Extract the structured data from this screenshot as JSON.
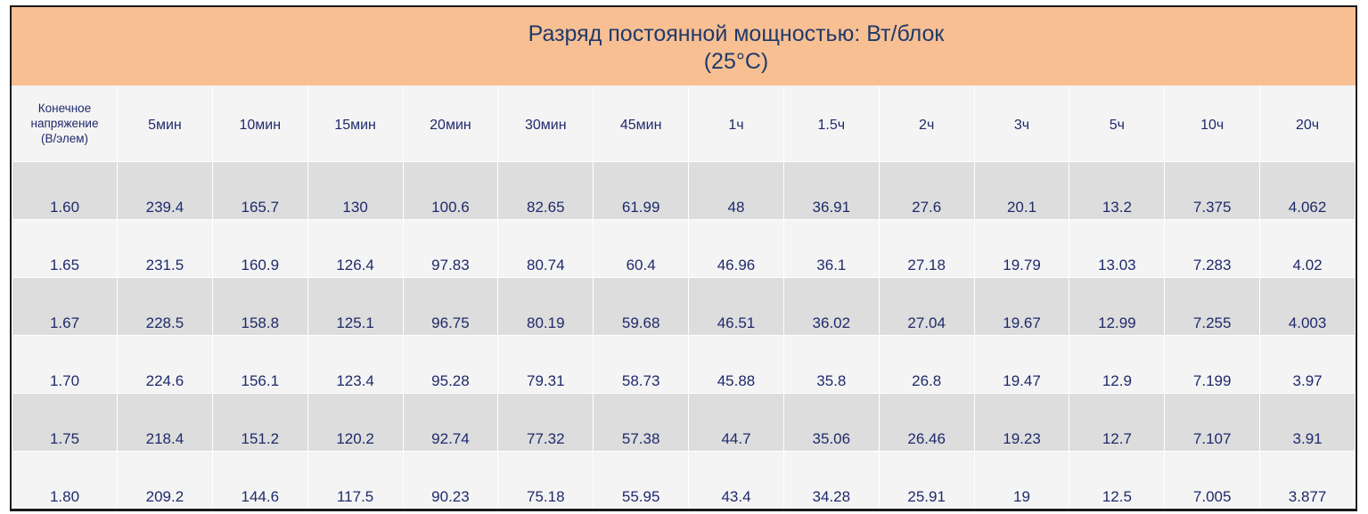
{
  "table": {
    "title_line1": "Разряд постоянной мощностью: Вт/блок",
    "title_line2": "(25°C)",
    "voltage_header_lines": [
      "Конечное",
      "напряжение",
      "(В/элем)"
    ],
    "columns": [
      "5мин",
      "10мин",
      "15мин",
      "20мин",
      "30мин",
      "45мин",
      "1ч",
      "1.5ч",
      "2ч",
      "3ч",
      "5ч",
      "10ч",
      "20ч"
    ],
    "rows": [
      {
        "voltage": "1.60",
        "values": [
          "239.4",
          "165.7",
          "130",
          "100.6",
          "82.65",
          "61.99",
          "48",
          "36.91",
          "27.6",
          "20.1",
          "13.2",
          "7.375",
          "4.062"
        ]
      },
      {
        "voltage": "1.65",
        "values": [
          "231.5",
          "160.9",
          "126.4",
          "97.83",
          "80.74",
          "60.4",
          "46.96",
          "36.1",
          "27.18",
          "19.79",
          "13.03",
          "7.283",
          "4.02"
        ]
      },
      {
        "voltage": "1.67",
        "values": [
          "228.5",
          "158.8",
          "125.1",
          "96.75",
          "80.19",
          "59.68",
          "46.51",
          "36.02",
          "27.04",
          "19.67",
          "12.99",
          "7.255",
          "4.003"
        ]
      },
      {
        "voltage": "1.70",
        "values": [
          "224.6",
          "156.1",
          "123.4",
          "95.28",
          "79.31",
          "58.73",
          "45.88",
          "35.8",
          "26.8",
          "19.47",
          "12.9",
          "7.199",
          "3.97"
        ]
      },
      {
        "voltage": "1.75",
        "values": [
          "218.4",
          "151.2",
          "120.2",
          "92.74",
          "77.32",
          "57.38",
          "44.7",
          "35.06",
          "26.46",
          "19.23",
          "12.7",
          "7.107",
          "3.91"
        ]
      },
      {
        "voltage": "1.80",
        "values": [
          "209.2",
          "144.6",
          "117.5",
          "90.23",
          "75.18",
          "55.95",
          "43.4",
          "34.28",
          "25.91",
          "19",
          "12.5",
          "7.005",
          "3.877"
        ]
      }
    ]
  },
  "colors": {
    "header_bg": "#f8bf93",
    "row_shade": "#dddddd",
    "row_plain": "#f4f4f4",
    "text": "#1f2a6b"
  }
}
